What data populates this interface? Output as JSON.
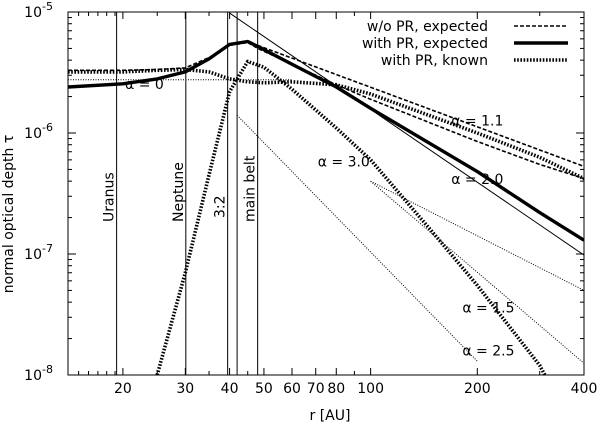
{
  "chart_data": {
    "type": "line",
    "xlabel": "r [AU]",
    "ylabel": "normal optical depth τ",
    "x_scale": "log",
    "y_scale": "log",
    "xlim": [
      14,
      400
    ],
    "ylim": [
      1e-08,
      1e-05
    ],
    "x_ticks": [
      {
        "value": 20,
        "label": "20"
      },
      {
        "value": 30,
        "label": "30"
      },
      {
        "value": 40,
        "label": "40"
      },
      {
        "value": 50,
        "label": "50"
      },
      {
        "value": 60,
        "label": "60"
      },
      {
        "value": 70,
        "label": "70"
      },
      {
        "value": 80,
        "label": "80"
      },
      {
        "value": 100,
        "label": "100"
      },
      {
        "value": 200,
        "label": "200"
      },
      {
        "value": 400,
        "label": "400"
      }
    ],
    "y_ticks": [
      {
        "value": 1e-08,
        "base": "10",
        "exp": "-8"
      },
      {
        "value": 1e-07,
        "base": "10",
        "exp": "-7"
      },
      {
        "value": 1e-06,
        "base": "10",
        "exp": "-6"
      },
      {
        "value": 1e-05,
        "base": "10",
        "exp": "-5"
      }
    ],
    "legend": {
      "position": "top-right",
      "entries": [
        {
          "label": "w/o  PR, expected",
          "style": "dashed-thin"
        },
        {
          "label": "with PR, expected",
          "style": "solid-thick"
        },
        {
          "label": "with PR, known",
          "style": "dotted-thick"
        }
      ]
    },
    "vertical_markers": [
      {
        "x": 19.2,
        "label": "Uranus"
      },
      {
        "x": 30.1,
        "label": "Neptune"
      },
      {
        "x": 39.5,
        "label": "3:2"
      },
      {
        "x": 42.0,
        "label": ""
      },
      {
        "x": 48.0,
        "label": "main belt"
      }
    ],
    "series": [
      {
        "name": "w/o  PR, expected",
        "style": "dashed-thin",
        "points": [
          [
            14,
            3.3e-06
          ],
          [
            20,
            3.3e-06
          ],
          [
            25,
            3.35e-06
          ],
          [
            30,
            3.45e-06
          ],
          [
            35,
            4.2e-06
          ],
          [
            40,
            5.3e-06
          ],
          [
            45,
            5.6e-06
          ],
          [
            48,
            5e-06
          ],
          [
            60,
            3.7e-06
          ],
          [
            80,
            2.5e-06
          ],
          [
            100,
            1.9e-06
          ],
          [
            200,
            8.5e-07
          ],
          [
            300,
            5.5e-07
          ],
          [
            400,
            4.2e-07
          ]
        ]
      },
      {
        "name": "with PR, expected",
        "style": "solid-thick",
        "points": [
          [
            14,
            2.4e-06
          ],
          [
            20,
            2.55e-06
          ],
          [
            25,
            2.8e-06
          ],
          [
            30,
            3.2e-06
          ],
          [
            35,
            4.1e-06
          ],
          [
            40,
            5.4e-06
          ],
          [
            45,
            5.7e-06
          ],
          [
            48,
            5.2e-06
          ],
          [
            60,
            3.7e-06
          ],
          [
            80,
            2.4e-06
          ],
          [
            100,
            1.6e-06
          ],
          [
            200,
            4.8e-07
          ],
          [
            300,
            2.2e-07
          ],
          [
            400,
            1.3e-07
          ]
        ]
      },
      {
        "name": "with PR, known",
        "style": "dotted-thick",
        "points": [
          [
            14,
            3.2e-06
          ],
          [
            20,
            3.2e-06
          ],
          [
            25,
            3.3e-06
          ],
          [
            30,
            3.35e-06
          ],
          [
            35,
            3.2e-06
          ],
          [
            40,
            2.8e-06
          ],
          [
            45,
            2.65e-06
          ],
          [
            50,
            2.6e-06
          ],
          [
            60,
            2.65e-06
          ],
          [
            80,
            2.5e-06
          ],
          [
            100,
            2.1e-06
          ],
          [
            200,
            1e-06
          ],
          [
            300,
            6.3e-07
          ],
          [
            400,
            4.2e-07
          ]
        ]
      },
      {
        "name": "",
        "style": "dotted-thick",
        "points": [
          [
            25,
            1e-08
          ],
          [
            30,
            7e-08
          ],
          [
            35,
            4.5e-07
          ],
          [
            40,
            2.2e-06
          ],
          [
            45,
            3.9e-06
          ],
          [
            50,
            3.5e-06
          ],
          [
            60,
            2.3e-06
          ],
          [
            80,
            1.1e-06
          ],
          [
            100,
            6e-07
          ],
          [
            150,
            1.5e-07
          ],
          [
            200,
            5.5e-08
          ],
          [
            300,
            1.2e-08
          ],
          [
            310,
            1e-08
          ]
        ]
      }
    ],
    "reference_lines": [
      {
        "label": "α = 0",
        "points": [
          [
            14,
            2.75e-06
          ],
          [
            60,
            2.75e-06
          ]
        ],
        "style": "dotted-thin"
      },
      {
        "label": "α = 1.1",
        "points": [
          [
            48,
            5.3e-06
          ],
          [
            400,
            5.3e-07
          ]
        ],
        "style": "dashed-thin"
      },
      {
        "label": "α = 2.0",
        "points": [
          [
            40,
            9.8e-06
          ],
          [
            400,
            9.8e-08
          ]
        ],
        "style": "solid-thin"
      },
      {
        "label": "α = 3.0",
        "points": [
          [
            42,
            1.4e-06
          ],
          [
            200,
            1.3e-08
          ]
        ],
        "style": "dotted-thin"
      },
      {
        "label": "α = 1.5",
        "points": [
          [
            100,
            4e-07
          ],
          [
            400,
            5e-08
          ]
        ],
        "style": "dotted-thin"
      },
      {
        "label": "α = 2.5",
        "points": [
          [
            100,
            4e-07
          ],
          [
            400,
            1.25e-08
          ]
        ],
        "style": "dotted-thin"
      }
    ],
    "annotations": [
      {
        "text": "α = 0",
        "x": 23,
        "y": 2.3e-06
      },
      {
        "text": "α = 1.1",
        "x": 200,
        "y": 1.15e-06
      },
      {
        "text": "α = 2.0",
        "x": 200,
        "y": 3.8e-07
      },
      {
        "text": "α = 3.0",
        "x": 84,
        "y": 5.3e-07
      },
      {
        "text": "α = 1.5",
        "x": 215,
        "y": 3.3e-08
      },
      {
        "text": "α = 2.5",
        "x": 215,
        "y": 1.45e-08
      }
    ]
  }
}
